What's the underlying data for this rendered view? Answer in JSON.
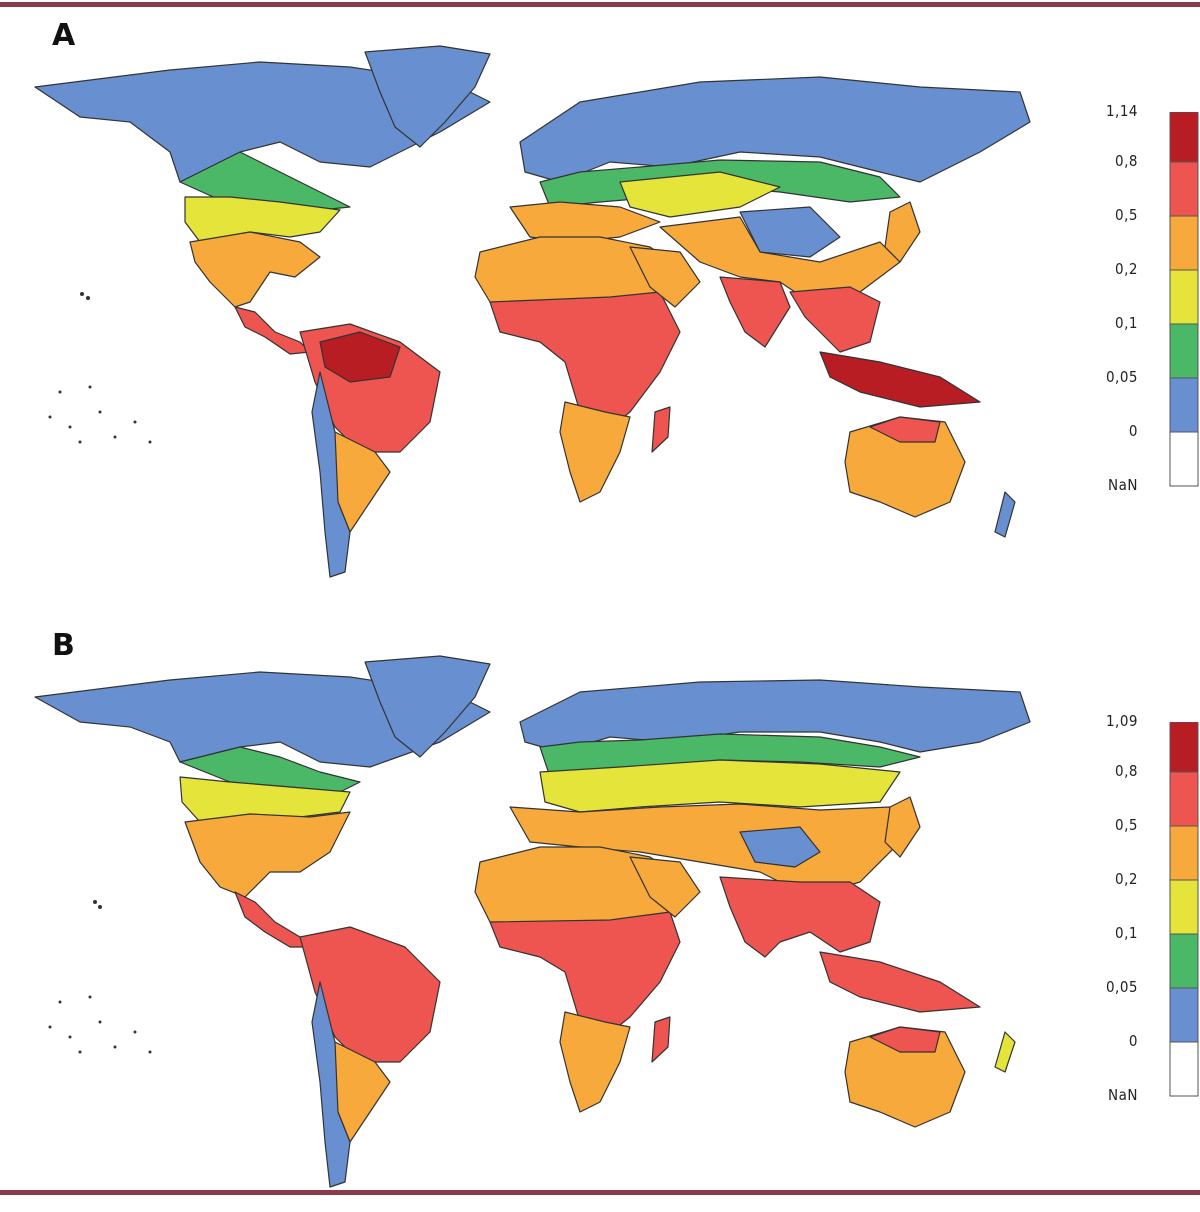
{
  "colors": {
    "border": "#8b3a4a",
    "land_outline": "#333333",
    "water": "#ffffff"
  },
  "legend_classes": [
    {
      "label_range": "0.8-max",
      "color": "#b81d24"
    },
    {
      "label_range": "0.5-0.8",
      "color": "#ee5550"
    },
    {
      "label_range": "0.2-0.5",
      "color": "#f8a93c"
    },
    {
      "label_range": "0.1-0.2",
      "color": "#e4e43a"
    },
    {
      "label_range": "0.05-0.1",
      "color": "#4bb868"
    },
    {
      "label_range": "0-0.05",
      "color": "#6890d0"
    },
    {
      "label_range": "NaN",
      "color": "#ffffff"
    }
  ],
  "panels": [
    {
      "label": "A",
      "legend_ticks": [
        "1,14",
        "0,8",
        "0,5",
        "0,2",
        "0,1",
        "0,05",
        "0",
        "NaN"
      ]
    },
    {
      "label": "B",
      "legend_ticks": [
        "1,09",
        "0,8",
        "0,5",
        "0,2",
        "0,1",
        "0,05",
        "0",
        "NaN"
      ]
    }
  ]
}
